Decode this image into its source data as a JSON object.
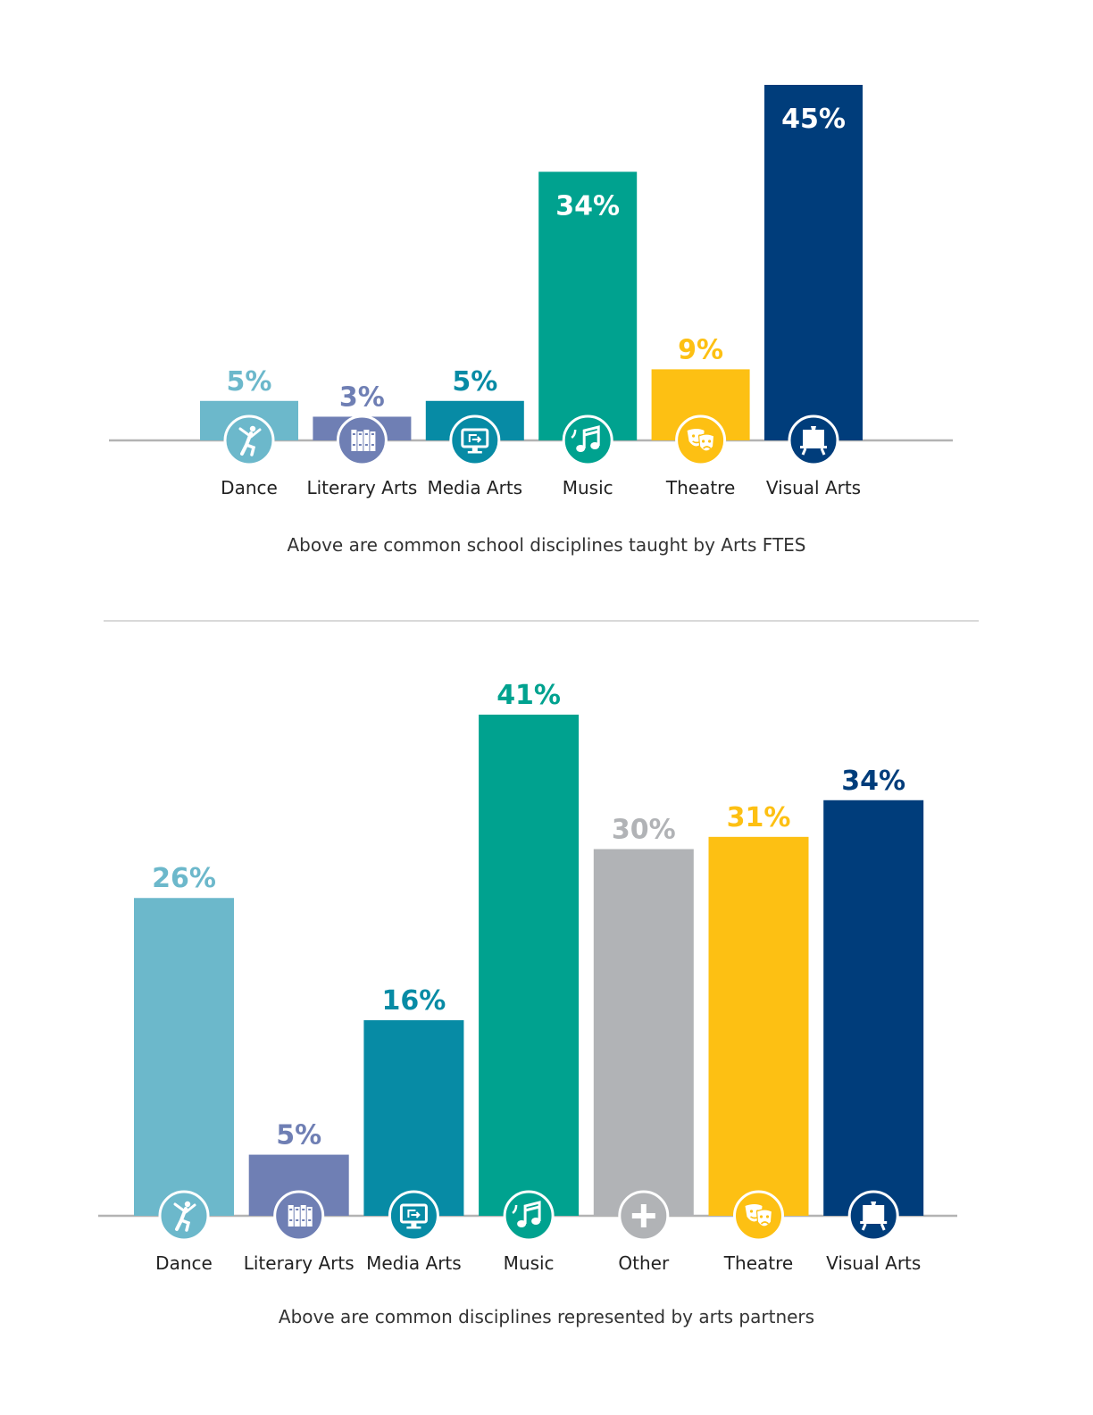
{
  "chart_data": [
    {
      "type": "bar",
      "categories": [
        "Dance",
        "Literary Arts",
        "Media Arts",
        "Music",
        "Theatre",
        "Visual Arts"
      ],
      "values": [
        5,
        3,
        5,
        34,
        9,
        45
      ],
      "value_labels": [
        "5%",
        "3%",
        "5%",
        "34%",
        "9%",
        "45%"
      ],
      "colors": [
        "#6cb8cb",
        "#6f7fb4",
        "#078ba5",
        "#00a28f",
        "#fdc013",
        "#003d7b"
      ],
      "icons": [
        "dancer-icon",
        "books-icon",
        "monitor-icon",
        "music-note-icon",
        "theatre-masks-icon",
        "easel-icon"
      ],
      "label_inside": [
        false,
        false,
        false,
        true,
        false,
        true
      ],
      "ylim": [
        0,
        45
      ],
      "grid": false,
      "caption": "Above are common school disciplines taught by Arts FTES"
    },
    {
      "type": "bar",
      "categories": [
        "Dance",
        "Literary Arts",
        "Media Arts",
        "Music",
        "Other",
        "Theatre",
        "Visual Arts"
      ],
      "values": [
        26,
        5,
        16,
        41,
        30,
        31,
        34
      ],
      "value_labels": [
        "26%",
        "5%",
        "16%",
        "41%",
        "30%",
        "31%",
        "34%"
      ],
      "colors": [
        "#6cb8cb",
        "#6f7fb4",
        "#078ba5",
        "#00a28f",
        "#b1b3b6",
        "#fdc013",
        "#003d7b"
      ],
      "icons": [
        "dancer-icon",
        "books-icon",
        "monitor-icon",
        "music-note-icon",
        "plus-icon",
        "theatre-masks-icon",
        "easel-icon"
      ],
      "label_inside": [
        false,
        false,
        false,
        false,
        false,
        false,
        false
      ],
      "ylim": [
        0,
        41
      ],
      "grid": false,
      "caption": "Above are common disciplines represented by arts partners"
    }
  ]
}
